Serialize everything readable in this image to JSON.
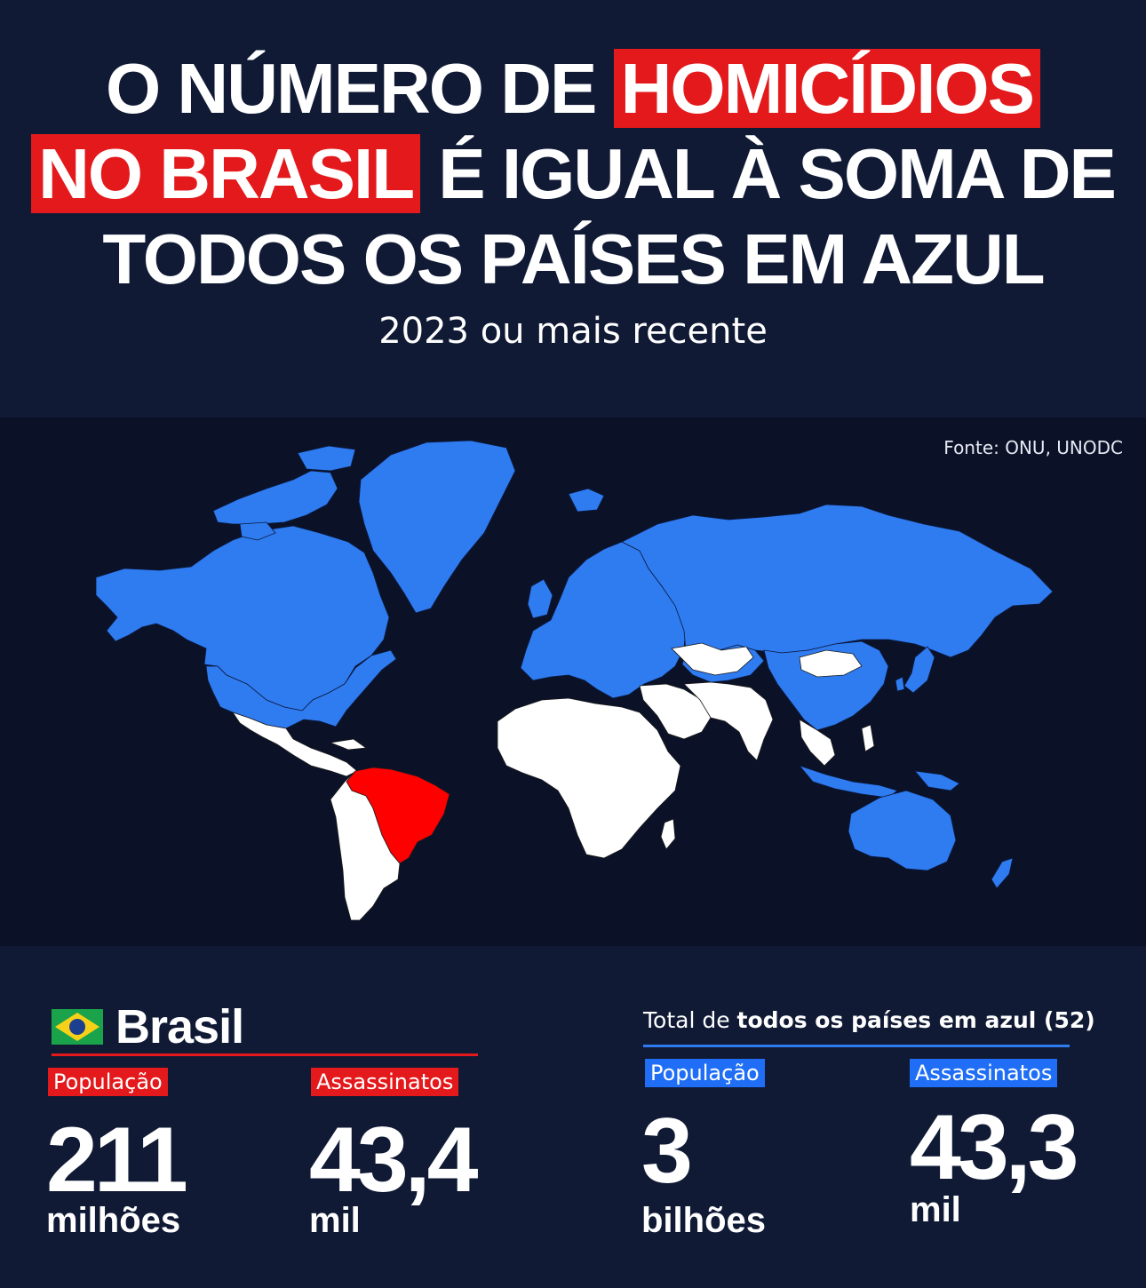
{
  "headline": {
    "line1_plain": "O NÚMERO DE ",
    "line1_highlight": "HOMICÍDIOS",
    "line2_highlight": "NO BRASIL",
    "line2_plain": " É IGUAL À SOMA DE",
    "line3_plain": "TODOS OS PAÍSES EM AZUL"
  },
  "subtitle": "2023 ou mais recente",
  "map": {
    "source": "Fonte: ONU, UNODC",
    "colors": {
      "blue_countries": "#2f7bf0",
      "brazil": "#ff0000",
      "other_countries": "#ffffff",
      "ocean": "#0b1228"
    }
  },
  "brasil": {
    "name": "Brasil",
    "flag_icon": "brazil-flag-icon",
    "population_label": "População",
    "population_value": "211",
    "population_unit": "milhões",
    "murders_label": "Assassinatos",
    "murders_value": "43,4",
    "murders_unit": "mil"
  },
  "blue_total": {
    "heading_prefix": "Total de ",
    "heading_bold": "todos os países em azul (52)",
    "population_label": "População",
    "population_value": "3",
    "population_unit": "bilhões",
    "murders_label": "Assassinatos",
    "murders_value": "43,3",
    "murders_unit": "mil"
  }
}
